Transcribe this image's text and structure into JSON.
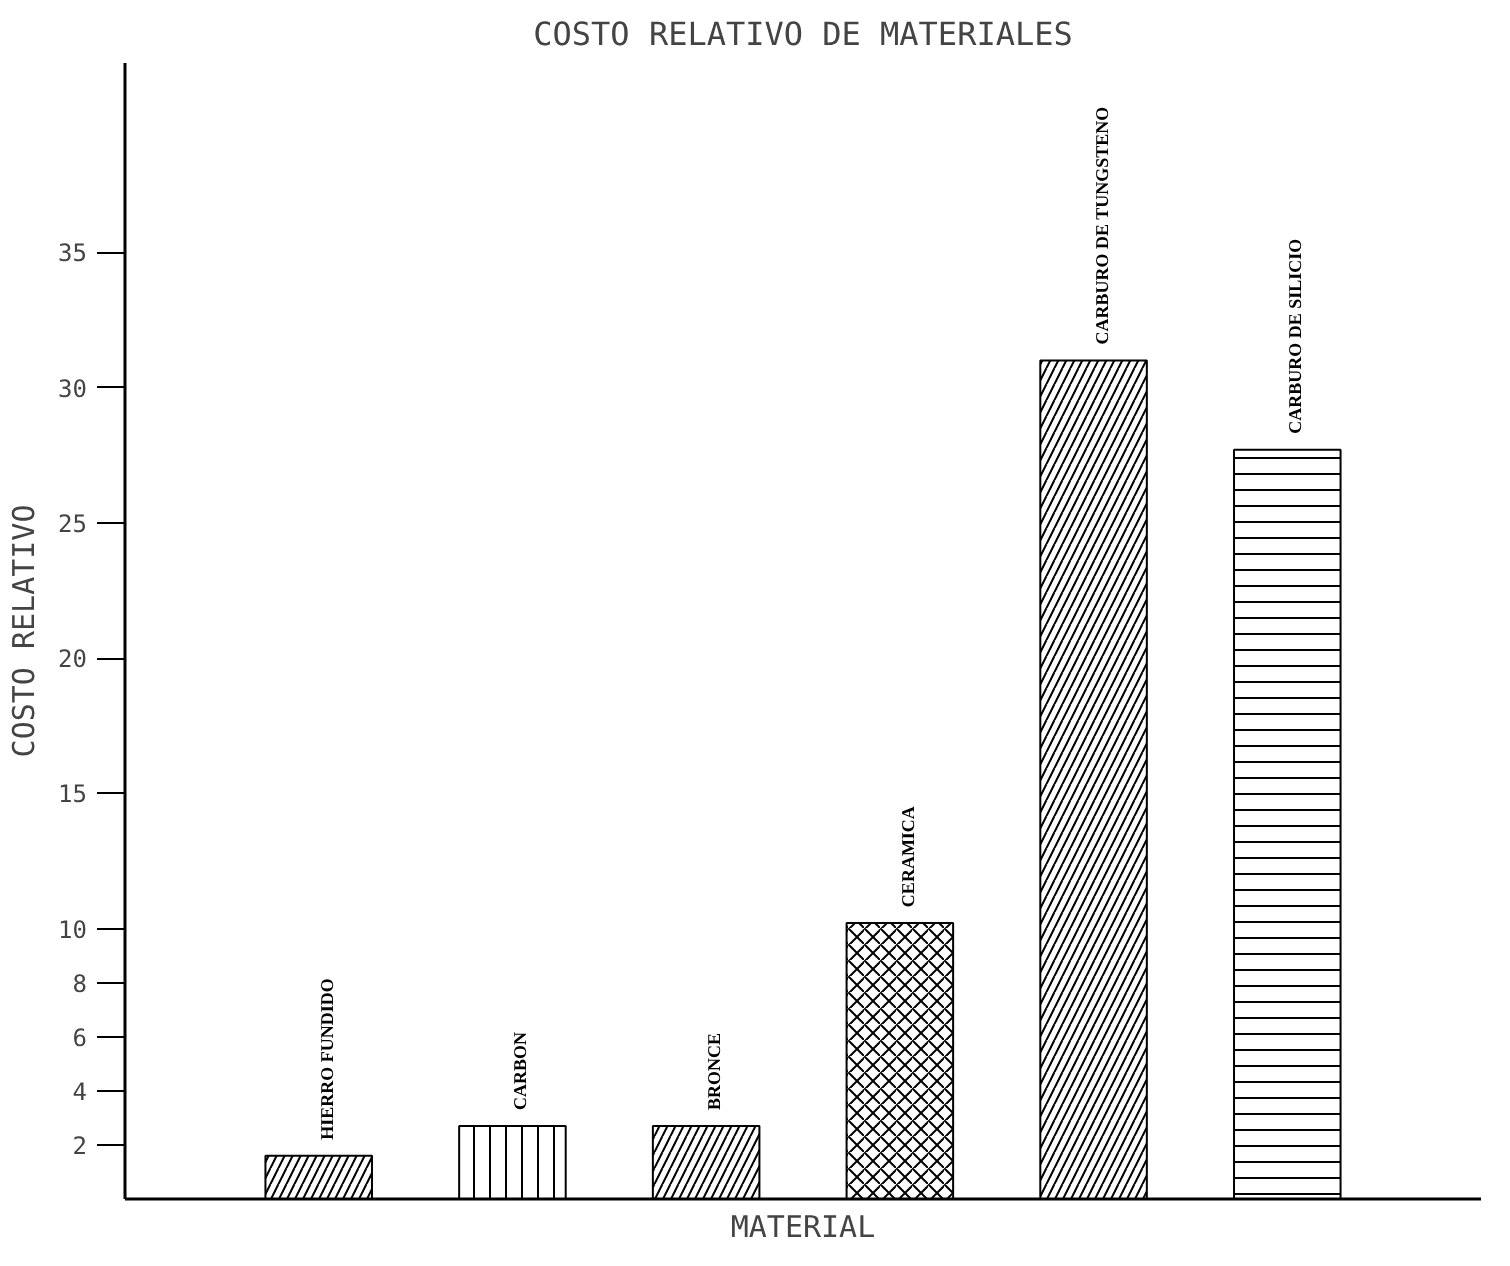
{
  "chart_data": {
    "type": "bar",
    "title": "COSTO RELATIVO DE MATERIALES",
    "xlabel": "MATERIAL",
    "ylabel": "COSTO RELATIVO",
    "categories": [
      "HIERRO FUNDIDO",
      "CARBON",
      "BRONCE",
      "CERAMICA",
      "CARBURO DE TUNGSTENO",
      "CARBURO DE SILICIO"
    ],
    "values": [
      1.6,
      2.7,
      2.7,
      10.2,
      31,
      27.7
    ],
    "color": "#000000",
    "ylim": [
      0,
      42
    ],
    "yticks": [
      2,
      4,
      6,
      8,
      10,
      15,
      20,
      25,
      30,
      35
    ],
    "grid": false
  }
}
